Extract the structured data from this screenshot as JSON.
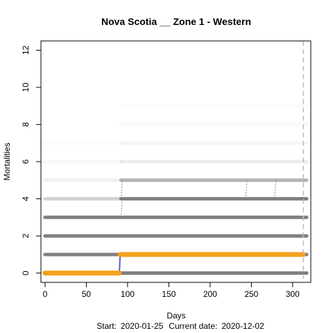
{
  "chart_data": {
    "type": "scatter",
    "title": "Nova Scotia __ Zone 1 - Western",
    "xlabel": "Days",
    "ylabel": "Mortalities",
    "xlim": [
      -5,
      322
    ],
    "ylim": [
      -0.5,
      12.5
    ],
    "x_ticks": [
      0,
      50,
      100,
      150,
      200,
      250,
      300
    ],
    "y_ticks": [
      0,
      2,
      4,
      6,
      8,
      10,
      12
    ],
    "current_day": 313,
    "footer": {
      "start_label": "Start:",
      "start_date": "2020-01-25",
      "current_label": "Current date:",
      "current_date": "2020-12-02"
    },
    "grey_bands": [
      {
        "value": 0,
        "segments": [
          [
            0,
            317,
            1.0
          ]
        ]
      },
      {
        "value": 1,
        "segments": [
          [
            0,
            317,
            1.0
          ]
        ]
      },
      {
        "value": 2,
        "segments": [
          [
            0,
            317,
            1.0
          ]
        ]
      },
      {
        "value": 3,
        "segments": [
          [
            0,
            317,
            1.0
          ]
        ]
      },
      {
        "value": 4,
        "segments": [
          [
            0,
            92,
            0.35
          ],
          [
            92,
            317,
            1.0
          ]
        ]
      },
      {
        "value": 5,
        "segments": [
          [
            0,
            92,
            0.12
          ],
          [
            92,
            317,
            0.6
          ]
        ]
      },
      {
        "value": 6,
        "segments": [
          [
            0,
            92,
            0.06
          ],
          [
            92,
            317,
            0.15
          ]
        ]
      },
      {
        "value": 7,
        "segments": [
          [
            0,
            92,
            0.03
          ],
          [
            92,
            317,
            0.08
          ]
        ]
      },
      {
        "value": 8,
        "segments": [
          [
            92,
            317,
            0.05
          ]
        ]
      },
      {
        "value": 9,
        "segments": [
          [
            92,
            317,
            0.03
          ]
        ]
      }
    ],
    "grey_steps": [
      {
        "x": 92,
        "from": 3,
        "to": 4
      },
      {
        "x": 92,
        "from": 4,
        "to": 5
      },
      {
        "x": 243,
        "from": 4,
        "to": 5
      },
      {
        "x": 278,
        "from": 4,
        "to": 5
      }
    ],
    "series": [
      {
        "color": "#f4a11c",
        "points": [
          [
            0,
            0
          ],
          [
            90,
            0
          ],
          [
            91,
            1
          ],
          [
            313,
            1
          ]
        ]
      }
    ],
    "step_line_color": "#5a5ac8",
    "grey_color": "#808080",
    "vline_color": "#bdbdbd"
  }
}
